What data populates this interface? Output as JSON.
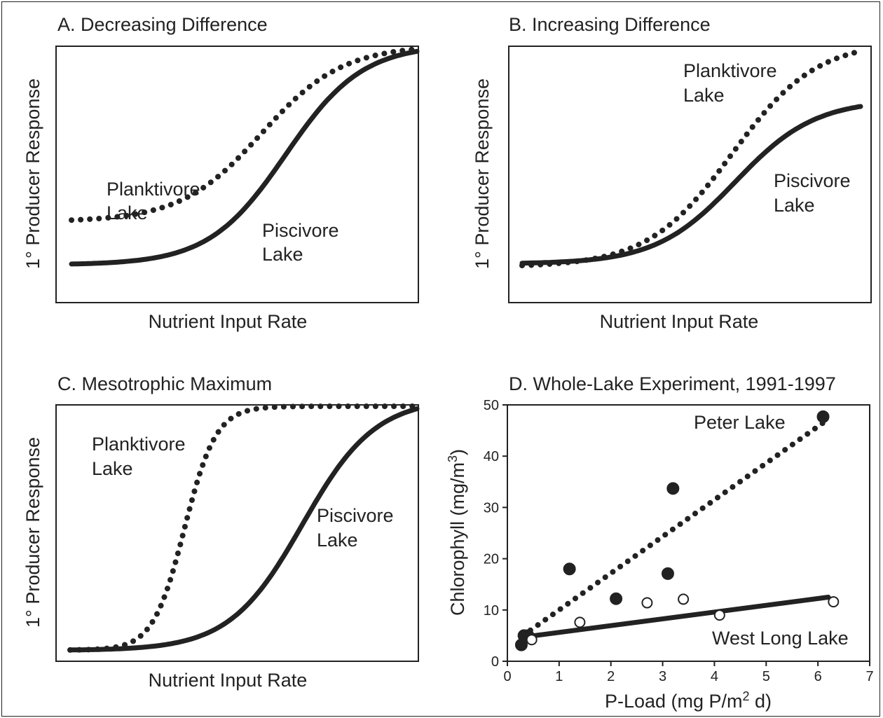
{
  "colors": {
    "ink": "#222222",
    "background": "#ffffff"
  },
  "chart_data": [
    {
      "type": "line",
      "title": "A. Decreasing Difference",
      "xlabel": "Nutrient Input Rate",
      "ylabel": "1° Producer Response",
      "curve_labels": [
        {
          "line1": "Planktivore",
          "line2": "Lake",
          "series": "Planktivore Lake"
        },
        {
          "line1": "Piscivore",
          "line2": "Lake",
          "series": "Piscivore Lake"
        }
      ],
      "series": [
        {
          "name": "Planktivore Lake",
          "style": "dotted",
          "shape": "sigmoid",
          "low": 0.26,
          "high": 1.0,
          "mid": 0.55,
          "steepness": 8.5
        },
        {
          "name": "Piscivore Lake",
          "style": "solid",
          "shape": "sigmoid",
          "low": 0.07,
          "high": 0.99,
          "mid": 0.62,
          "steepness": 9.0
        }
      ]
    },
    {
      "type": "line",
      "title": "B. Increasing Difference",
      "xlabel": "Nutrient Input Rate",
      "ylabel": "1° Producer Response",
      "curve_labels": [
        {
          "line1": "Planktivore",
          "line2": "Lake",
          "series": "Planktivore Lake"
        },
        {
          "line1": "Piscivore",
          "line2": "Lake",
          "series": "Piscivore Lake"
        }
      ],
      "series": [
        {
          "name": "Planktivore Lake",
          "style": "dotted",
          "shape": "sigmoid",
          "low": 0.07,
          "high": 1.0,
          "mid": 0.62,
          "steepness": 8.0
        },
        {
          "name": "Piscivore Lake",
          "style": "solid",
          "shape": "sigmoid",
          "low": 0.08,
          "high": 0.76,
          "mid": 0.63,
          "steepness": 8.5
        }
      ]
    },
    {
      "type": "line",
      "title": "C. Mesotrophic Maximum",
      "xlabel": "Nutrient Input Rate",
      "ylabel": "1° Producer Response",
      "curve_labels": [
        {
          "line1": "Planktivore",
          "line2": "Lake",
          "series": "Planktivore Lake"
        },
        {
          "line1": "Piscivore",
          "line2": "Lake",
          "series": "Piscivore Lake"
        }
      ],
      "series": [
        {
          "name": "Planktivore Lake",
          "style": "dotted",
          "shape": "sigmoid",
          "low": 0.02,
          "high": 1.0,
          "mid": 0.33,
          "steepness": 22
        },
        {
          "name": "Piscivore Lake",
          "style": "solid",
          "shape": "sigmoid",
          "low": 0.02,
          "high": 0.99,
          "mid": 0.67,
          "steepness": 9.5
        }
      ]
    },
    {
      "type": "scatter",
      "title": "D. Whole-Lake Experiment, 1991-1997",
      "xlabel_parts": {
        "pre": "P-Load (mg P/m",
        "sup": "2",
        "post": " d)"
      },
      "ylabel_parts": {
        "pre": "Chlorophyll (mg/m",
        "sup": "3",
        "post": ")"
      },
      "xlim": [
        0,
        7
      ],
      "ylim": [
        0,
        50
      ],
      "xticks": [
        "0",
        "1",
        "2",
        "3",
        "4",
        "5",
        "6",
        "7"
      ],
      "yticks": [
        "0",
        "10",
        "20",
        "30",
        "40",
        "50"
      ],
      "curve_labels": [
        {
          "text": "Peter Lake",
          "series": "Peter Lake"
        },
        {
          "text": "West Long Lake",
          "series": "West Long Lake"
        }
      ],
      "series": [
        {
          "name": "Peter Lake",
          "marker": "filled-circle",
          "points": [
            [
              0.27,
              3.2
            ],
            [
              0.32,
              5.0
            ],
            [
              0.4,
              5.0
            ],
            [
              1.2,
              18.0
            ],
            [
              2.1,
              12.2
            ],
            [
              3.1,
              17.1
            ],
            [
              3.2,
              33.7
            ],
            [
              6.1,
              47.7
            ]
          ],
          "fit": {
            "style": "dotted",
            "x": [
              0.3,
              6.1
            ],
            "y": [
              5.0,
              46.5
            ]
          }
        },
        {
          "name": "West Long Lake",
          "marker": "open-circle",
          "points": [
            [
              0.47,
              4.2
            ],
            [
              1.4,
              7.6
            ],
            [
              2.7,
              11.4
            ],
            [
              3.4,
              12.1
            ],
            [
              4.1,
              9.0
            ],
            [
              6.3,
              11.6
            ]
          ],
          "fit": {
            "style": "solid",
            "x": [
              0.3,
              6.2
            ],
            "y": [
              4.7,
              12.5
            ]
          }
        }
      ]
    }
  ]
}
